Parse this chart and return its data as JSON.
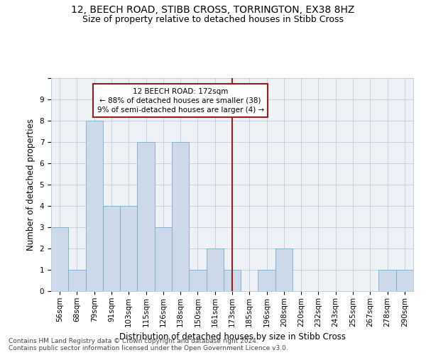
{
  "title": "12, BEECH ROAD, STIBB CROSS, TORRINGTON, EX38 8HZ",
  "subtitle": "Size of property relative to detached houses in Stibb Cross",
  "xlabel": "Distribution of detached houses by size in Stibb Cross",
  "ylabel": "Number of detached properties",
  "categories": [
    "56sqm",
    "68sqm",
    "79sqm",
    "91sqm",
    "103sqm",
    "115sqm",
    "126sqm",
    "138sqm",
    "150sqm",
    "161sqm",
    "173sqm",
    "185sqm",
    "196sqm",
    "208sqm",
    "220sqm",
    "232sqm",
    "243sqm",
    "255sqm",
    "267sqm",
    "278sqm",
    "290sqm"
  ],
  "values": [
    3,
    1,
    8,
    4,
    4,
    7,
    3,
    7,
    1,
    2,
    1,
    0,
    1,
    2,
    0,
    0,
    0,
    0,
    0,
    1,
    1
  ],
  "bar_color": "#ccdaeb",
  "bar_edge_color": "#7aaacb",
  "vline_index": 10,
  "vline_color": "#9b1c1c",
  "annotation_text": "12 BEECH ROAD: 172sqm\n← 88% of detached houses are smaller (38)\n9% of semi-detached houses are larger (4) →",
  "annotation_box_color": "#9b1c1c",
  "ylim": [
    0,
    10
  ],
  "yticks": [
    0,
    1,
    2,
    3,
    4,
    5,
    6,
    7,
    8,
    9,
    10
  ],
  "footer1": "Contains HM Land Registry data © Crown copyright and database right 2024.",
  "footer2": "Contains public sector information licensed under the Open Government Licence v3.0.",
  "bg_color": "#eef2f7",
  "grid_color": "#c0cad8",
  "title_fontsize": 10,
  "subtitle_fontsize": 9,
  "axis_label_fontsize": 8.5,
  "tick_fontsize": 7.5,
  "footer_fontsize": 6.5
}
